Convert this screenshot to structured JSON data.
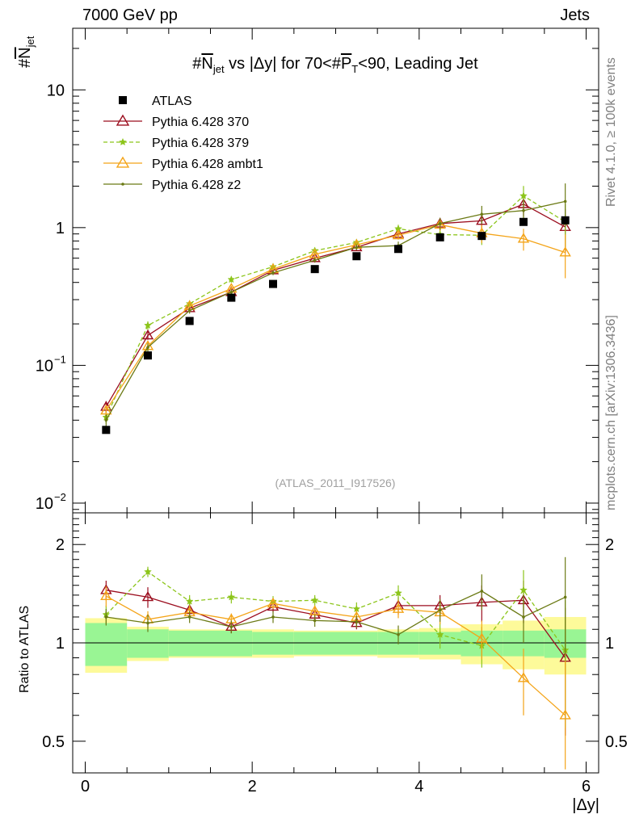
{
  "header": {
    "left": "7000 GeV pp",
    "right": "Jets"
  },
  "side": {
    "rivet": "Rivet 4.1.0, ≥ 100k events",
    "mcplots": "mcplots.cern.ch [arXiv:1306.3436]"
  },
  "chart_data": {
    "type": "scatter",
    "title": "#N_jet vs |Δy| for 70<#P_T<90, Leading Jet",
    "title_parts": {
      "a": "#",
      "b": "N",
      "c": "jet",
      "d": " vs |Δy| for 70<#",
      "e": "P",
      "f": "T",
      "g": "<90, Leading Jet"
    },
    "ylabel_top": "#N_jet",
    "ylabel_parts": {
      "a": "#",
      "b": "N",
      "c": "jet"
    },
    "ylabel_bottom": "Ratio to ATLAS",
    "xlabel": "|Δy|",
    "watermark": "(ATLAS_2011_I917526)",
    "xlim": [
      -0.15,
      6.15
    ],
    "ylim_top": [
      0.0085,
      28
    ],
    "ylim_bottom": [
      0.4,
      2.5
    ],
    "x_ticks": [
      0,
      2,
      4,
      6
    ],
    "x_tick_labels": [
      "0",
      "2",
      "4",
      "6"
    ],
    "y_ticks_top": [
      0.01,
      0.1,
      1,
      10
    ],
    "y_tick_labels_top": {
      "0.01": [
        "10",
        "−2"
      ],
      "0.1": [
        "10",
        "−1"
      ],
      "1": [
        "1",
        ""
      ],
      "10": [
        "10",
        ""
      ]
    },
    "y_ticks_bottom": [
      0.5,
      1,
      2
    ],
    "y_tick_labels_bottom": [
      "0.5",
      "1",
      "2"
    ],
    "bin_edges": [
      0,
      0.5,
      1,
      1.5,
      2,
      2.5,
      3,
      3.5,
      4,
      4.5,
      5,
      5.5,
      6
    ],
    "x": [
      0.25,
      0.75,
      1.25,
      1.75,
      2.25,
      2.75,
      3.25,
      3.75,
      4.25,
      4.75,
      5.25,
      5.75
    ],
    "data": {
      "name": "ATLAS",
      "color": "#000000",
      "values": [
        0.034,
        0.118,
        0.21,
        0.31,
        0.39,
        0.5,
        0.62,
        0.7,
        0.85,
        0.87,
        1.1,
        1.13
      ],
      "band_inner": [
        0.15,
        0.1,
        0.09,
        0.09,
        0.08,
        0.08,
        0.08,
        0.08,
        0.08,
        0.09,
        0.09,
        0.1
      ],
      "band_outer": [
        0.19,
        0.12,
        0.1,
        0.1,
        0.1,
        0.09,
        0.09,
        0.1,
        0.11,
        0.14,
        0.17,
        0.2
      ]
    },
    "series": [
      {
        "name": "Pythia 6.428 370",
        "color": "#9b0d1e",
        "marker": "triangle-open",
        "dash": "",
        "values": [
          0.05,
          0.165,
          0.26,
          0.34,
          0.49,
          0.6,
          0.72,
          0.9,
          1.07,
          1.12,
          1.48,
          1.01
        ],
        "ratio": [
          1.45,
          1.38,
          1.26,
          1.12,
          1.29,
          1.22,
          1.15,
          1.3,
          1.3,
          1.33,
          1.35,
          0.9
        ],
        "ratio_err": [
          0.1,
          0.1,
          0.08,
          0.05,
          0.05,
          0.06,
          0.05,
          0.08,
          0.1,
          0.17,
          0.2,
          0.38
        ]
      },
      {
        "name": "Pythia 6.428 379",
        "color": "#8cc51a",
        "marker": "star",
        "dash": "5,3",
        "values": [
          0.042,
          0.195,
          0.28,
          0.42,
          0.52,
          0.68,
          0.78,
          0.98,
          0.89,
          0.88,
          1.7,
          1.1
        ],
        "ratio": [
          1.22,
          1.65,
          1.34,
          1.38,
          1.34,
          1.35,
          1.27,
          1.42,
          1.06,
          0.98,
          1.45,
          0.95
        ],
        "ratio_err": [
          0.08,
          0.06,
          0.06,
          0.06,
          0.05,
          0.05,
          0.06,
          0.08,
          0.1,
          0.14,
          0.22,
          0.4
        ]
      },
      {
        "name": "Pythia 6.428 ambt1",
        "color": "#f4a418",
        "marker": "triangle-open",
        "dash": "",
        "values": [
          0.047,
          0.138,
          0.27,
          0.36,
          0.5,
          0.64,
          0.75,
          0.88,
          1.05,
          0.91,
          0.83,
          0.66
        ],
        "ratio": [
          1.39,
          1.18,
          1.24,
          1.18,
          1.32,
          1.25,
          1.2,
          1.27,
          1.24,
          1.03,
          0.78,
          0.6
        ],
        "ratio_err": [
          0.1,
          0.07,
          0.06,
          0.05,
          0.05,
          0.05,
          0.06,
          0.08,
          0.1,
          0.14,
          0.18,
          0.28
        ]
      },
      {
        "name": "Pythia 6.428 z2",
        "color": "#6b7a14",
        "marker": "dot",
        "dash": "",
        "values": [
          0.04,
          0.135,
          0.25,
          0.34,
          0.47,
          0.58,
          0.72,
          0.74,
          1.07,
          1.25,
          1.33,
          1.55
        ],
        "ratio": [
          1.2,
          1.15,
          1.2,
          1.12,
          1.2,
          1.17,
          1.16,
          1.06,
          1.26,
          1.44,
          1.2,
          1.38
        ],
        "ratio_err": [
          0.07,
          0.07,
          0.05,
          0.05,
          0.05,
          0.05,
          0.05,
          0.07,
          0.1,
          0.18,
          0.2,
          0.45
        ]
      }
    ]
  }
}
